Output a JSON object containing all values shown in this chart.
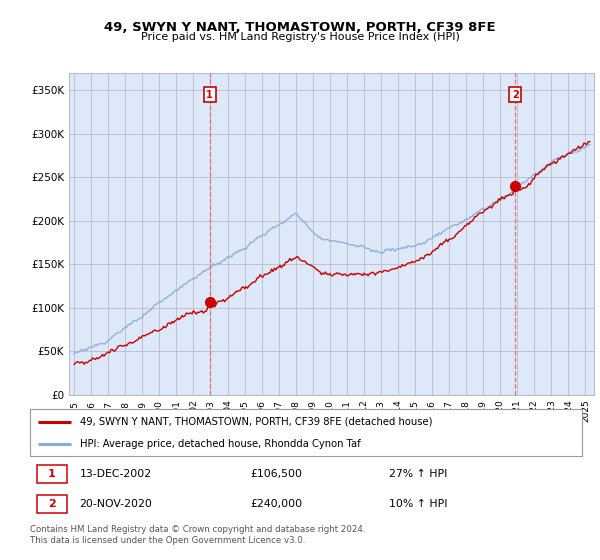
{
  "title": "49, SWYN Y NANT, THOMASTOWN, PORTH, CF39 8FE",
  "subtitle": "Price paid vs. HM Land Registry's House Price Index (HPI)",
  "legend_line1": "49, SWYN Y NANT, THOMASTOWN, PORTH, CF39 8FE (detached house)",
  "legend_line2": "HPI: Average price, detached house, Rhondda Cynon Taf",
  "transaction1_date": "13-DEC-2002",
  "transaction1_price": "£106,500",
  "transaction1_hpi": "27% ↑ HPI",
  "transaction2_date": "20-NOV-2020",
  "transaction2_price": "£240,000",
  "transaction2_hpi": "10% ↑ HPI",
  "footer": "Contains HM Land Registry data © Crown copyright and database right 2024.\nThis data is licensed under the Open Government Licence v3.0.",
  "ylabel_ticks": [
    "£0",
    "£50K",
    "£100K",
    "£150K",
    "£200K",
    "£250K",
    "£300K",
    "£350K"
  ],
  "ytick_values": [
    0,
    50000,
    100000,
    150000,
    200000,
    250000,
    300000,
    350000
  ],
  "xlim_start": 1994.7,
  "xlim_end": 2025.5,
  "ylim": [
    0,
    370000
  ],
  "line_color_red": "#cc0000",
  "line_color_blue": "#88aadd",
  "background_color": "#dde8f8",
  "grid_color": "#bbbbcc",
  "transaction_marker_color": "#cc0000",
  "transaction_vline_color": "#dd6666",
  "price_t1": 106500,
  "price_t2": 240000,
  "year_t1": 2002.958,
  "year_t2": 2020.875
}
